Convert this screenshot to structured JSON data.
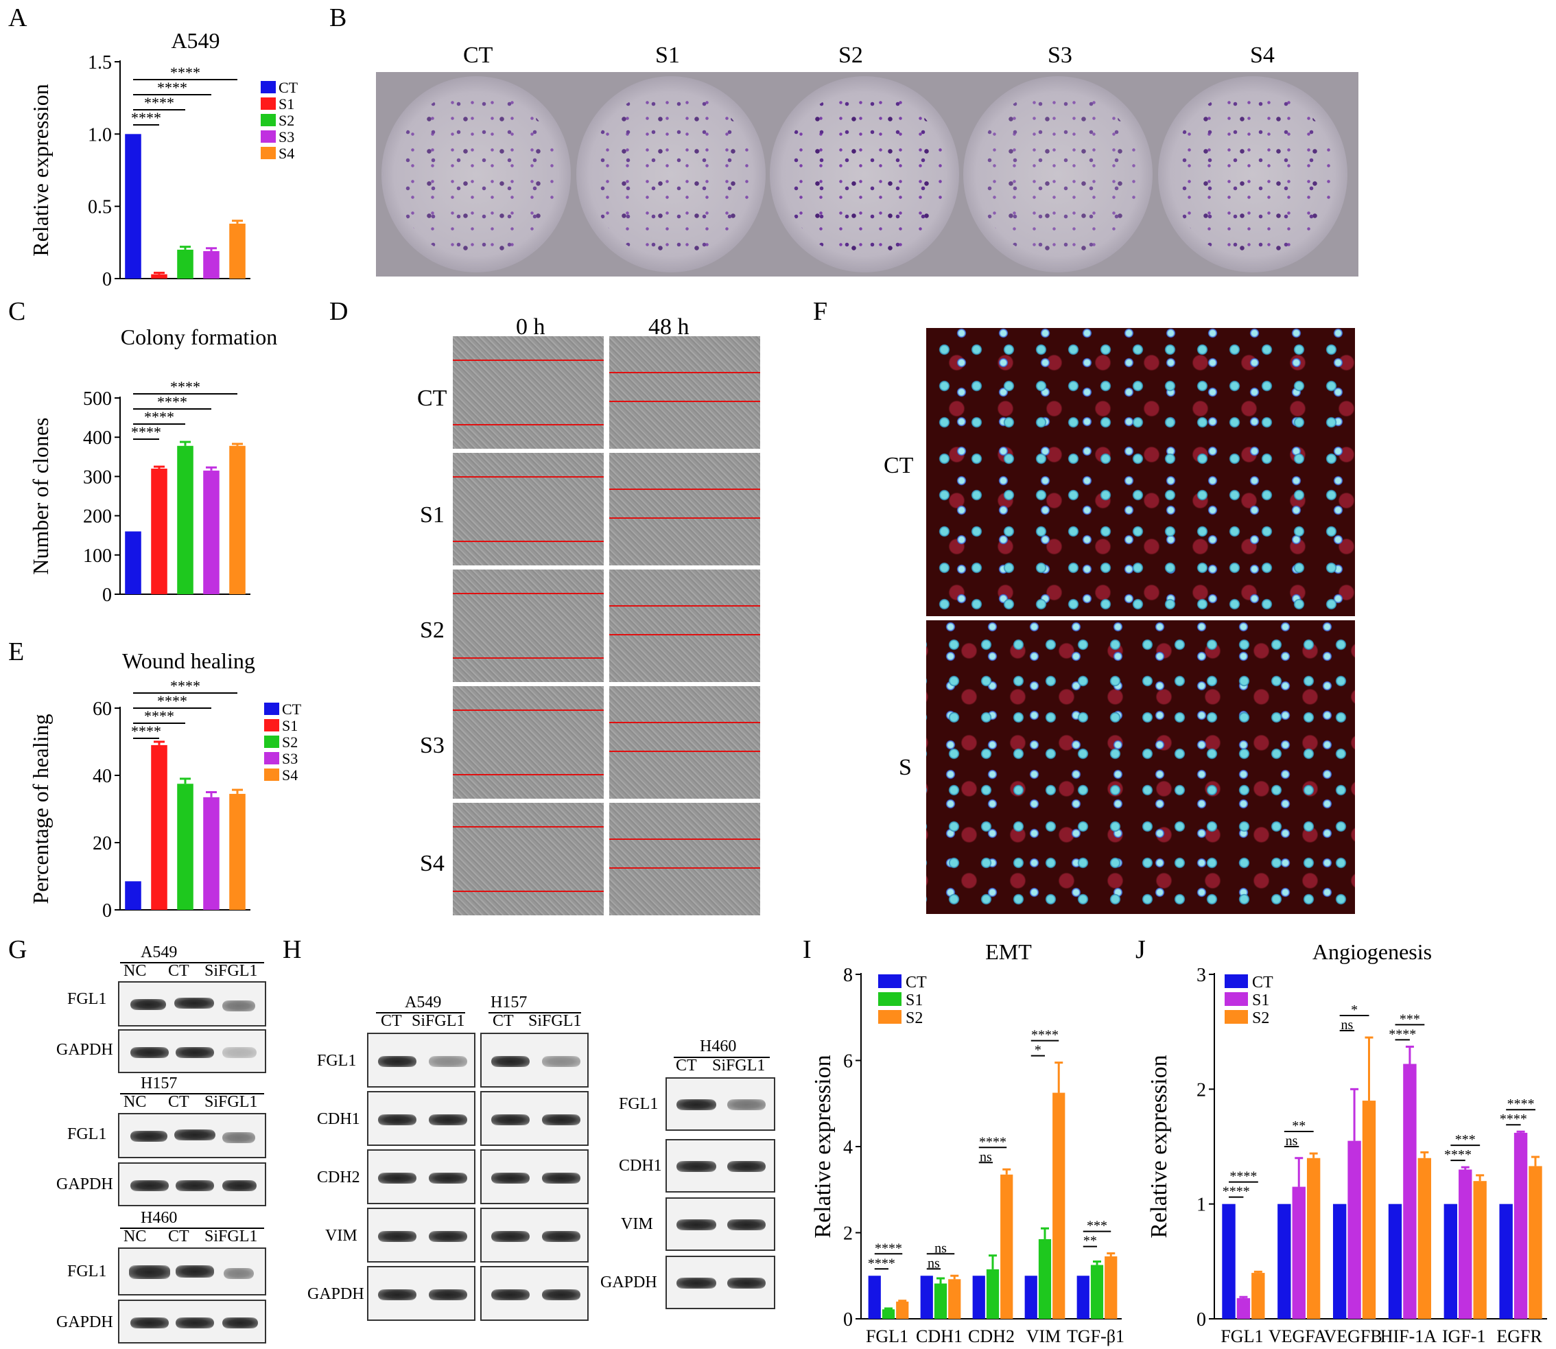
{
  "panel_letters": [
    "A",
    "B",
    "C",
    "D",
    "E",
    "F",
    "G",
    "H",
    "I",
    "J"
  ],
  "panelB": {
    "labels": [
      "CT",
      "S1",
      "S2",
      "S3",
      "S4"
    ]
  },
  "panelD": {
    "cols": [
      "0 h",
      "48 h"
    ],
    "rows": [
      "CT",
      "S1",
      "S2",
      "S3",
      "S4"
    ]
  },
  "panelF": {
    "rows": [
      "CT",
      "S"
    ]
  },
  "panelG": {
    "blocks": [
      {
        "cell": "A549",
        "lanes": [
          "NC",
          "CT",
          "SiFGL1"
        ],
        "rows": [
          "FGL1",
          "GAPDH"
        ]
      },
      {
        "cell": "H157",
        "lanes": [
          "NC",
          "CT",
          "SiFGL1"
        ],
        "rows": [
          "FGL1",
          "GAPDH"
        ]
      },
      {
        "cell": "H460",
        "lanes": [
          "NC",
          "CT",
          "SiFGL1"
        ],
        "rows": [
          "FGL1",
          "GAPDH"
        ]
      }
    ]
  },
  "panelH": {
    "left": {
      "cells": [
        {
          "name": "A549",
          "lanes": [
            "CT",
            "SiFGL1"
          ]
        },
        {
          "name": "H157",
          "lanes": [
            "CT",
            "SiFGL1"
          ]
        }
      ],
      "rows": [
        "FGL1",
        "CDH1",
        "CDH2",
        "VIM",
        "GAPDH"
      ]
    },
    "right": {
      "cells": [
        {
          "name": "H460",
          "lanes": [
            "CT",
            "SiFGL1"
          ]
        }
      ],
      "rows": [
        "FGL1",
        "CDH1",
        "VIM",
        "GAPDH"
      ]
    }
  },
  "chart_data": [
    {
      "panel": "A",
      "type": "bar",
      "title": "A549",
      "ylabel": "Relative expression",
      "categories": [
        "CT",
        "S1",
        "S2",
        "S3",
        "S4"
      ],
      "values": [
        1.0,
        0.03,
        0.2,
        0.19,
        0.38
      ],
      "errors": [
        0,
        0.01,
        0.02,
        0.02,
        0.02
      ],
      "colors": [
        "#1414e6",
        "#ff1a1a",
        "#1ec81e",
        "#c030e0",
        "#ff8c1a"
      ],
      "ylim": [
        0,
        1.5
      ],
      "yticks": [
        "0",
        "0.5",
        "1.0",
        "1.5"
      ],
      "legend": [
        "CT",
        "S1",
        "S2",
        "S3",
        "S4"
      ],
      "legend_position": "right",
      "significance": [
        "****",
        "****",
        "****",
        "****"
      ]
    },
    {
      "panel": "C",
      "type": "bar",
      "title": "Colony formation",
      "ylabel": "Number of clones",
      "categories": [
        "CT",
        "S1",
        "S2",
        "S3",
        "S4"
      ],
      "values": [
        160,
        320,
        378,
        315,
        378
      ],
      "errors": [
        0,
        5,
        10,
        8,
        5
      ],
      "colors": [
        "#1414e6",
        "#ff1a1a",
        "#1ec81e",
        "#c030e0",
        "#ff8c1a"
      ],
      "ylim": [
        0,
        500
      ],
      "yticks": [
        "0",
        "100",
        "200",
        "300",
        "400",
        "500"
      ],
      "significance": [
        "****",
        "****",
        "****",
        "****"
      ]
    },
    {
      "panel": "E",
      "type": "bar",
      "title": "Wound healing",
      "ylabel": "Percentage of healing",
      "categories": [
        "CT",
        "S1",
        "S2",
        "S3",
        "S4"
      ],
      "values": [
        8.5,
        49,
        37.5,
        33.5,
        34.5
      ],
      "errors": [
        0,
        1,
        1.5,
        1.5,
        1.2
      ],
      "colors": [
        "#1414e6",
        "#ff1a1a",
        "#1ec81e",
        "#c030e0",
        "#ff8c1a"
      ],
      "ylim": [
        0,
        60
      ],
      "yticks": [
        "0",
        "20",
        "40",
        "60"
      ],
      "legend": [
        "CT",
        "S1",
        "S2",
        "S3",
        "S4"
      ],
      "legend_position": "right",
      "significance": [
        "****",
        "****",
        "****",
        "****"
      ]
    },
    {
      "panel": "I",
      "type": "bar",
      "title": "EMT",
      "ylabel": "Relative expression",
      "categories": [
        "FGL1",
        "CDH1",
        "CDH2",
        "VIM",
        "TGF-β1"
      ],
      "series": [
        {
          "name": "CT",
          "color": "#1414e6",
          "values": [
            1,
            1,
            1,
            1,
            1
          ],
          "errors": [
            0,
            0,
            0,
            0,
            0
          ]
        },
        {
          "name": "S1",
          "color": "#1ec81e",
          "values": [
            0.22,
            0.82,
            1.15,
            1.85,
            1.25
          ],
          "errors": [
            0.02,
            0.12,
            0.32,
            0.25,
            0.08
          ]
        },
        {
          "name": "S2",
          "color": "#ff8c1a",
          "values": [
            0.4,
            0.92,
            3.35,
            5.25,
            1.45
          ],
          "errors": [
            0.02,
            0.08,
            0.12,
            0.7,
            0.07
          ]
        }
      ],
      "ylim": [
        0,
        8
      ],
      "yticks": [
        "0",
        "2",
        "4",
        "6",
        "8"
      ],
      "legend_position": "top-left",
      "significance": [
        [
          "****",
          "****"
        ],
        [
          "ns",
          "ns"
        ],
        [
          "ns",
          "****"
        ],
        [
          "*",
          "****"
        ],
        [
          "**",
          "***"
        ]
      ]
    },
    {
      "panel": "J",
      "type": "bar",
      "title": "Angiogenesis",
      "ylabel": "Relative expression",
      "categories": [
        "FGL1",
        "VEGFA",
        "VEGFB",
        "HIF-1A",
        "IGF-1",
        "EGFR"
      ],
      "series": [
        {
          "name": "CT",
          "color": "#1414e6",
          "values": [
            1,
            1,
            1,
            1,
            1,
            1
          ],
          "errors": [
            0,
            0,
            0,
            0,
            0,
            0
          ]
        },
        {
          "name": "S1",
          "color": "#c030e0",
          "values": [
            0.18,
            1.15,
            1.55,
            2.22,
            1.3,
            1.62
          ],
          "errors": [
            0.01,
            0.25,
            0.45,
            0.15,
            0.02,
            0.01
          ]
        },
        {
          "name": "S2",
          "color": "#ff8c1a",
          "values": [
            0.4,
            1.4,
            1.9,
            1.4,
            1.2,
            1.33
          ],
          "errors": [
            0.01,
            0.04,
            0.55,
            0.05,
            0.05,
            0.08
          ]
        }
      ],
      "ylim": [
        0,
        3
      ],
      "yticks": [
        "0",
        "1",
        "2",
        "3"
      ],
      "legend_position": "top-left",
      "significance": [
        [
          "****",
          "****"
        ],
        [
          "ns",
          "**"
        ],
        [
          "ns",
          "*"
        ],
        [
          "****",
          "***"
        ],
        [
          "****",
          "***"
        ],
        [
          "****",
          "****"
        ]
      ]
    }
  ]
}
